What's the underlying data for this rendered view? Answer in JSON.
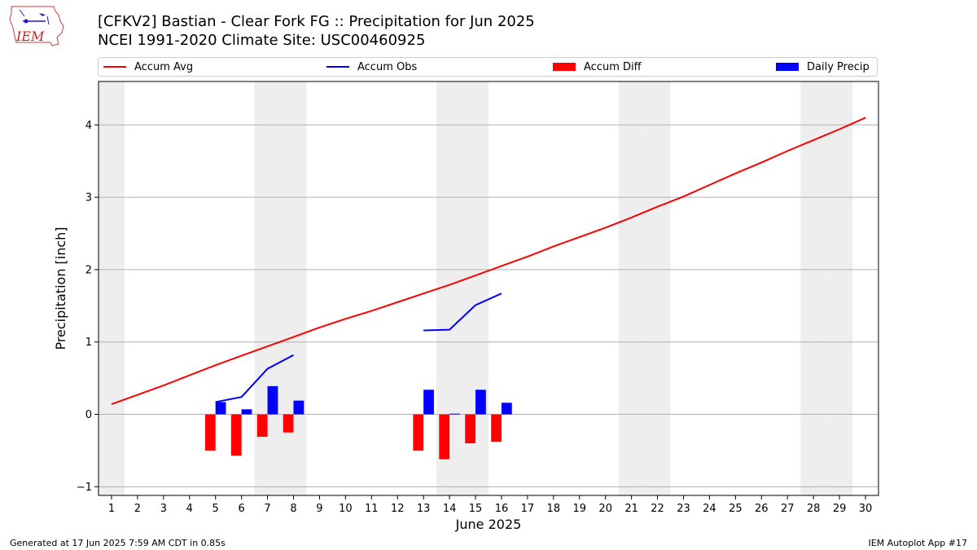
{
  "header": {
    "title_line1": "[CFKV2] Bastian - Clear Fork FG :: Precipitation for Jun 2025",
    "title_line2": "NCEI 1991-2020 Climate Site: USC00460925",
    "logo_text": "IEM"
  },
  "footer": {
    "left": "Generated at 17 Jun 2025 7:59 AM CDT in 0.85s",
    "right": "IEM Autoplot App #17"
  },
  "colors": {
    "accum_avg": "#ff0000",
    "accum_obs": "#0000ff",
    "accum_diff": "#ff0000",
    "daily_precip": "#0000ff",
    "weekend_shade": "#eeeeee",
    "grid": "#b0b0b0"
  },
  "chart_data": {
    "type": "bar",
    "xlabel": "June 2025",
    "ylabel": "Precipitation [inch]",
    "xlim": [
      0.5,
      30.5
    ],
    "ylim": [
      -1.12,
      4.6
    ],
    "x_ticks": [
      1,
      2,
      3,
      4,
      5,
      6,
      7,
      8,
      9,
      10,
      11,
      12,
      13,
      14,
      15,
      16,
      17,
      18,
      19,
      20,
      21,
      22,
      23,
      24,
      25,
      26,
      27,
      28,
      29,
      30
    ],
    "y_ticks": [
      -1,
      0,
      1,
      2,
      3,
      4
    ],
    "grid": "horizontal",
    "legend_position": "top",
    "legend": [
      "Accum Avg",
      "Accum Obs",
      "Accum Diff",
      "Daily Precip"
    ],
    "shaded_days": [
      1,
      7,
      8,
      14,
      15,
      21,
      22,
      28,
      29
    ],
    "accum_avg": {
      "days": [
        1,
        2,
        3,
        4,
        5,
        6,
        7,
        8,
        9,
        10,
        11,
        12,
        13,
        14,
        15,
        16,
        17,
        18,
        19,
        20,
        21,
        22,
        23,
        24,
        25,
        26,
        27,
        28,
        29,
        30
      ],
      "values": [
        0.14,
        0.27,
        0.4,
        0.54,
        0.68,
        0.81,
        0.94,
        1.07,
        1.2,
        1.32,
        1.43,
        1.55,
        1.67,
        1.79,
        1.92,
        2.05,
        2.18,
        2.32,
        2.45,
        2.58,
        2.72,
        2.87,
        3.01,
        3.17,
        3.33,
        3.48,
        3.64,
        3.79,
        3.94,
        4.1
      ]
    },
    "accum_obs": [
      {
        "days": [
          5,
          6,
          7,
          8
        ],
        "values": [
          0.17,
          0.24,
          0.63,
          0.82
        ]
      },
      {
        "days": [
          13,
          14,
          15,
          16
        ],
        "values": [
          1.16,
          1.17,
          1.51,
          1.67
        ]
      }
    ],
    "accum_diff": {
      "days": [
        5,
        6,
        7,
        8,
        13,
        14,
        15,
        16
      ],
      "values": [
        -0.5,
        -0.57,
        -0.31,
        -0.25,
        -0.5,
        -0.62,
        -0.4,
        -0.38
      ]
    },
    "daily_precip": {
      "days": [
        5,
        6,
        7,
        8,
        13,
        14,
        15,
        16
      ],
      "values": [
        0.17,
        0.07,
        0.39,
        0.19,
        0.34,
        0.01,
        0.34,
        0.16
      ]
    }
  }
}
